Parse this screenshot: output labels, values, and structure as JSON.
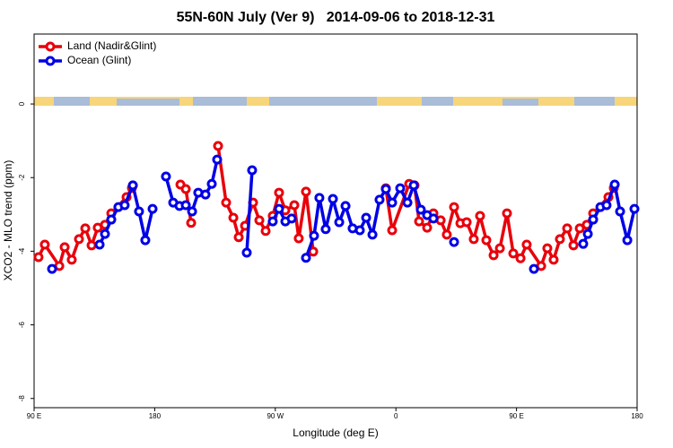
{
  "chart_data": {
    "type": "line",
    "title": "55N-60N July (Ver 9)   2014-09-06 to 2018-12-31",
    "xlabel": "Longitude (deg E)",
    "ylabel": "XCO2 - MLO trend (ppm)",
    "xlim": [
      90,
      540
    ],
    "ylim": [
      -8.25,
      1.9
    ],
    "xticks": [
      {
        "value": 90,
        "label": "90 E"
      },
      {
        "value": 180,
        "label": "180"
      },
      {
        "value": 270,
        "label": "90 W"
      },
      {
        "value": 360,
        "label": "0"
      },
      {
        "value": 450,
        "label": "90 E"
      },
      {
        "value": 540,
        "label": "180"
      }
    ],
    "yticks": [
      0,
      -2,
      -4,
      -6,
      -8
    ],
    "legend": "upper left",
    "series": [
      {
        "name": "Land (Nadir&Glint)",
        "color": "#e8000b",
        "x": [
          93.3,
          98.0,
          108.8,
          112.8,
          118.1,
          123.5,
          128.2,
          132.9,
          137.5,
          142.9,
          147.6,
          159.0,
          163.0,
          null,
          199.2,
          203.2,
          207.2,
          null,
          227.3,
          233.3,
          238.7,
          242.7,
          247.4,
          253.4,
          258.1,
          262.8,
          268.1,
          272.8,
          277.5,
          284.2,
          287.5,
          292.9,
          298.3,
          null,
          352.5,
          357.2,
          369.9,
          373.9,
          377.3,
          383.3,
          388.0,
          393.4,
          398.0,
          403.4,
          408.1,
          412.8,
          418.1,
          422.8,
          427.5,
          432.9,
          437.6,
          442.9,
          447.6,
          453.0,
          457.6,
          468.4,
          473.0,
          477.7,
          482.4,
          487.8,
          492.5,
          497.2,
          502.5,
          507.2,
          518.6,
          522.6
        ],
        "values": [
          -4.16,
          -3.82,
          -4.4,
          -3.89,
          -4.23,
          -3.67,
          -3.38,
          -3.84,
          -3.36,
          -3.28,
          -2.97,
          -2.53,
          -2.28,
          null,
          -2.19,
          -2.31,
          -3.23,
          null,
          -1.14,
          -2.68,
          -3.09,
          -3.62,
          -3.31,
          -2.68,
          -3.16,
          -3.45,
          -3.04,
          -2.41,
          -2.89,
          -2.75,
          -3.65,
          -2.38,
          -4.01,
          null,
          -2.29,
          -3.43,
          -2.17,
          -2.21,
          -3.19,
          -3.36,
          -2.97,
          -3.16,
          -3.55,
          -2.8,
          -3.24,
          -3.21,
          -3.67,
          -3.04,
          -3.7,
          -4.11,
          -3.92,
          -2.97,
          -4.06,
          -4.19,
          -3.82,
          -4.4,
          -3.92,
          -4.23,
          -3.67,
          -3.38,
          -3.84,
          -3.38,
          -3.28,
          -2.97,
          -2.53,
          -2.28
        ]
      },
      {
        "name": "Ocean (Glint)",
        "color": "#0000e6",
        "x": [
          103.4,
          null,
          138.9,
          142.9,
          147.6,
          152.9,
          157.6,
          163.7,
          168.3,
          173.0,
          178.4,
          null,
          188.4,
          193.8,
          198.5,
          203.2,
          207.9,
          212.5,
          217.9,
          222.6,
          226.6,
          null,
          248.7,
          252.7,
          null,
          268.1,
          272.8,
          277.5,
          282.2,
          null,
          292.9,
          298.9,
          302.9,
          307.6,
          313.0,
          317.7,
          322.4,
          327.7,
          333.1,
          337.8,
          342.5,
          347.8,
          352.5,
          357.2,
          363.2,
          368.6,
          373.3,
          378.6,
          383.3,
          388.0,
          null,
          403.4,
          null,
          463.0,
          null,
          499.8,
          503.2,
          507.2,
          512.6,
          517.2,
          523.3,
          527.3,
          532.7,
          538.0
        ],
        "values": [
          -4.48,
          null,
          -3.82,
          -3.53,
          -3.14,
          -2.8,
          -2.75,
          -2.21,
          -2.92,
          -3.7,
          -2.85,
          null,
          -1.97,
          -2.68,
          -2.77,
          -2.75,
          -2.92,
          -2.41,
          -2.46,
          -2.17,
          -1.51,
          null,
          -4.04,
          -1.8,
          null,
          -3.19,
          -2.85,
          -3.19,
          -3.11,
          null,
          -4.18,
          -3.58,
          -2.55,
          -3.4,
          -2.58,
          -3.21,
          -2.77,
          -3.38,
          -3.43,
          -3.09,
          -3.55,
          -2.6,
          -2.31,
          -2.68,
          -2.29,
          -2.68,
          -2.21,
          -2.87,
          -3.02,
          -3.11,
          null,
          -3.75,
          null,
          -4.48,
          null,
          -3.8,
          -3.53,
          -3.14,
          -2.8,
          -2.75,
          -2.19,
          -2.92,
          -3.7,
          -2.85
        ]
      }
    ]
  }
}
